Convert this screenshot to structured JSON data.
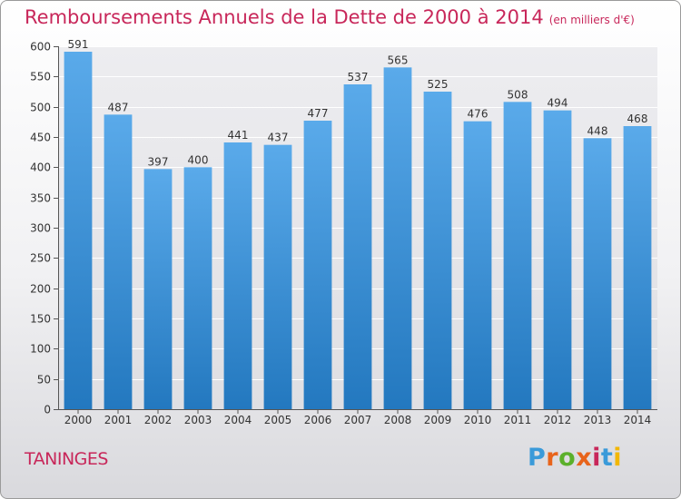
{
  "header": {
    "title": "Remboursements Annuels de la Dette de 2000 à 2014",
    "subtitle": "(en milliers d'€)"
  },
  "footer": {
    "place": "TANINGES",
    "brand": "Proxiti",
    "brand_letters": [
      "P",
      "r",
      "o",
      "x",
      "i",
      "t",
      "i"
    ],
    "brand_colors": [
      "#3a9ad9",
      "#e8641b",
      "#5bb02b",
      "#e8641b",
      "#c8275a",
      "#3a9ad9",
      "#f2b705"
    ]
  },
  "colors": {
    "accent": "#c8275a",
    "bar_top": "#5aaaea",
    "bar_bottom": "#2378bf"
  },
  "chart_data": {
    "type": "bar",
    "title": "Remboursements Annuels de la Dette de 2000 à 2014",
    "subtitle": "(en milliers d'€)",
    "xlabel": "",
    "ylabel": "",
    "categories": [
      "2000",
      "2001",
      "2002",
      "2003",
      "2004",
      "2005",
      "2006",
      "2007",
      "2008",
      "2009",
      "2010",
      "2011",
      "2012",
      "2013",
      "2014"
    ],
    "values": [
      591,
      487,
      397,
      400,
      441,
      437,
      477,
      537,
      565,
      525,
      476,
      508,
      494,
      448,
      468
    ],
    "ylim": [
      0,
      600
    ],
    "yticks": [
      0,
      50,
      100,
      150,
      200,
      250,
      300,
      350,
      400,
      450,
      500,
      550,
      600
    ],
    "grid": true,
    "legend": "none"
  }
}
